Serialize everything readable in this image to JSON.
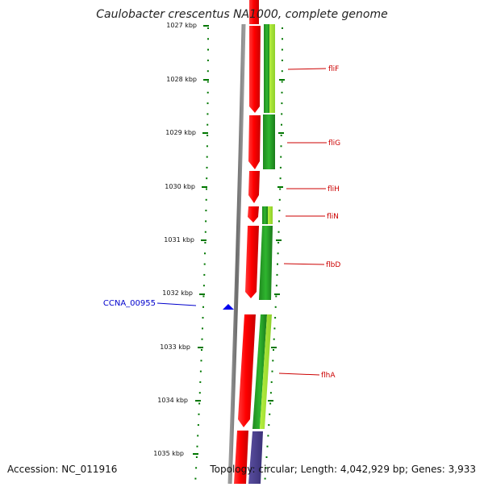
{
  "header": {
    "title": "Caulobacter crescentus NA1000, complete genome"
  },
  "scale": {
    "tick_labels": [
      "1027 kbp",
      "1028 kbp",
      "1029 kbp",
      "1030 kbp",
      "1031 kbp",
      "1032 kbp",
      "1033 kbp",
      "1034 kbp",
      "1035 kbp"
    ]
  },
  "genes": [
    {
      "label": "fliF",
      "color": "#cc0000"
    },
    {
      "label": "fliG",
      "color": "#cc0000"
    },
    {
      "label": "fliH",
      "color": "#cc0000"
    },
    {
      "label": "fliN",
      "color": "#cc0000"
    },
    {
      "label": "flbD",
      "color": "#cc0000"
    },
    {
      "label": "flhA",
      "color": "#cc0000"
    }
  ],
  "marker": {
    "label": "CCNA_00955",
    "color": "#0000cc"
  },
  "footer": {
    "accession": "Accession: NC_011916",
    "summary": "Topology: circular; Length: 4,042,929 bp; Genes: 3,933"
  },
  "colors": {
    "feature_red": "#ee0000",
    "feature_green": "#22aa22",
    "feature_lightgreen": "#aaee33",
    "feature_purple": "#4a3f8c",
    "tick_green": "#007700",
    "backbone": "#777777"
  }
}
